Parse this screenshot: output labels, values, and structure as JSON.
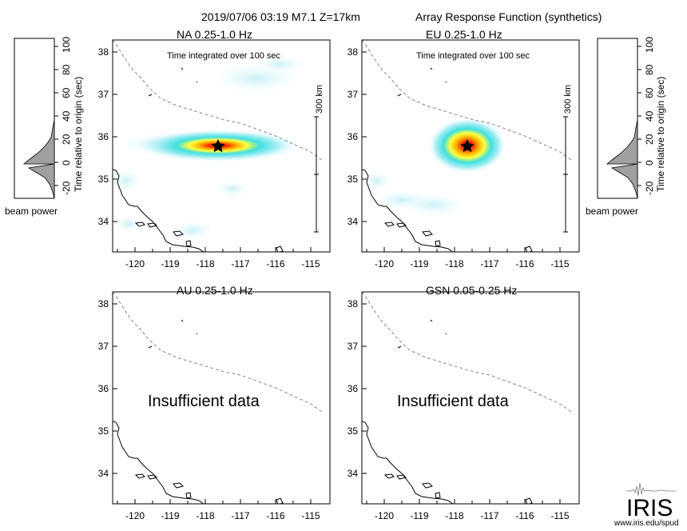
{
  "header": {
    "event": "2019/07/06 03:19  M7.1  Z=17km",
    "subject": "Array Response Function (synthetics)"
  },
  "side_panels": {
    "ylabel": "Time relative to origin (sec)",
    "xlabel": "beam power",
    "ticks": [
      "100",
      "80",
      "60",
      "40",
      "20",
      "0",
      "-20"
    ]
  },
  "maps": {
    "x_ticks": [
      "-120",
      "-119",
      "-118",
      "-117",
      "-116",
      "-115"
    ],
    "y_ticks": [
      "38",
      "37",
      "36",
      "35",
      "34"
    ],
    "panels": [
      {
        "id": "na",
        "title": "NA  0.25-1.0 Hz",
        "note": "Time integrated over 100 sec",
        "scale_label": "300 km",
        "status": "",
        "has_beam": true
      },
      {
        "id": "eu",
        "title": "EU  0.25-1.0 Hz",
        "note": "Time integrated over 100 sec",
        "scale_label": "300 km",
        "status": "",
        "has_beam": true
      },
      {
        "id": "au",
        "title": "AU  0.25-1.0 Hz",
        "note": "",
        "scale_label": "",
        "status": "Insufficient data",
        "has_beam": false
      },
      {
        "id": "gsn",
        "title": "GSN  0.05-0.25 Hz",
        "note": "",
        "scale_label": "",
        "status": "Insufficient data",
        "has_beam": false
      }
    ]
  },
  "logo": {
    "text": "IRIS",
    "url": "www.iris.edu/spud"
  }
}
